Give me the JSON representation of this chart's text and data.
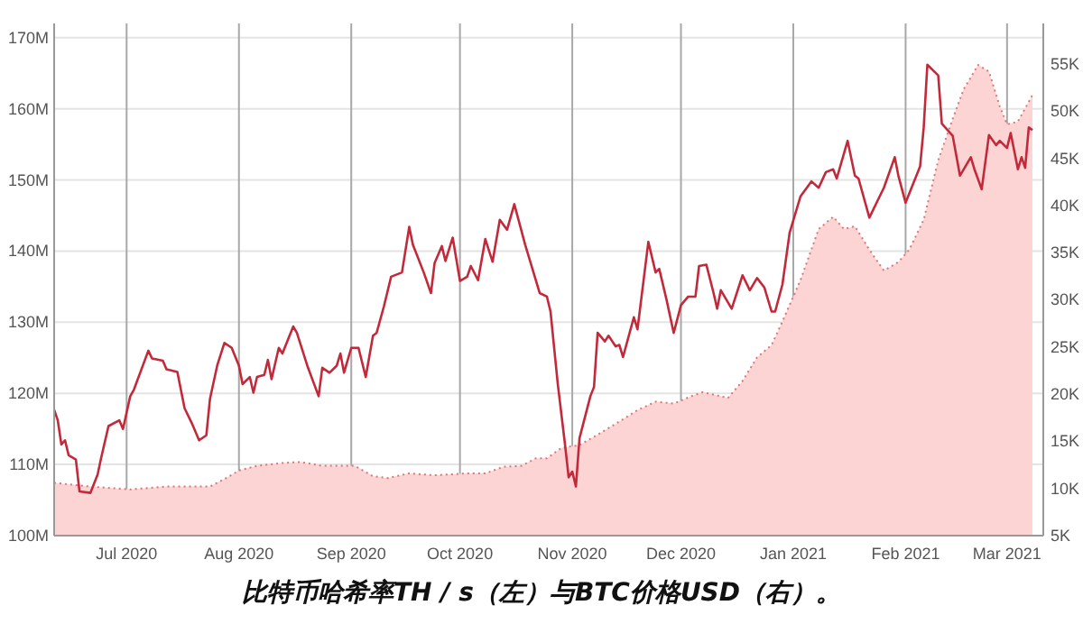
{
  "chart_data": {
    "type": "line",
    "annotations": [
      "比特币哈希率TH / s（左）与BTC价格USD（右）。"
    ],
    "xlim": [
      "2020-06-11",
      "2021-03-11"
    ],
    "xticks": [
      {
        "value": "2020-07-01",
        "label": "Jul 2020"
      },
      {
        "value": "2020-08-01",
        "label": "Aug 2020"
      },
      {
        "value": "2020-09-01",
        "label": "Sep 2020"
      },
      {
        "value": "2020-10-01",
        "label": "Oct 2020"
      },
      {
        "value": "2020-11-01",
        "label": "Nov 2020"
      },
      {
        "value": "2020-12-01",
        "label": "Dec 2020"
      },
      {
        "value": "2021-01-01",
        "label": "Jan 2021"
      },
      {
        "value": "2021-02-01",
        "label": "Feb 2021"
      },
      {
        "value": "2021-03-01",
        "label": "Mar 2021"
      }
    ],
    "ylim": [
      100000000,
      172000000
    ],
    "yticks": [
      {
        "value": 100000000,
        "label": "100M"
      },
      {
        "value": 110000000,
        "label": "110M"
      },
      {
        "value": 120000000,
        "label": "120M"
      },
      {
        "value": 130000000,
        "label": "130M"
      },
      {
        "value": 140000000,
        "label": "140M"
      },
      {
        "value": 150000000,
        "label": "150M"
      },
      {
        "value": 160000000,
        "label": "160M"
      },
      {
        "value": 170000000,
        "label": "170M"
      }
    ],
    "y2lim": [
      5000,
      59300
    ],
    "y2ticks": [
      {
        "value": 5000,
        "label": "5K"
      },
      {
        "value": 10000,
        "label": "10K"
      },
      {
        "value": 15000,
        "label": "15K"
      },
      {
        "value": 20000,
        "label": "20K"
      },
      {
        "value": 25000,
        "label": "25K"
      },
      {
        "value": 30000,
        "label": "30K"
      },
      {
        "value": 35000,
        "label": "35K"
      },
      {
        "value": 40000,
        "label": "40K"
      },
      {
        "value": 45000,
        "label": "45K"
      },
      {
        "value": 50000,
        "label": "50K"
      },
      {
        "value": 55000,
        "label": "55K"
      }
    ],
    "grid": true,
    "series": [
      {
        "type": "area",
        "axis": "y2",
        "color": "#fcd4d4",
        "line_style": "dotted",
        "x": [
          "2020-06-11",
          "2020-06-21",
          "2020-07-02",
          "2020-07-12",
          "2020-07-24",
          "2020-07-28",
          "2020-08-01",
          "2020-08-06",
          "2020-08-13",
          "2020-08-18",
          "2020-08-24",
          "2020-09-02",
          "2020-09-07",
          "2020-09-11",
          "2020-09-17",
          "2020-09-24",
          "2020-10-03",
          "2020-10-08",
          "2020-10-13",
          "2020-10-18",
          "2020-10-22",
          "2020-10-25",
          "2020-10-29",
          "2020-11-03",
          "2020-11-08",
          "2020-11-14",
          "2020-11-19",
          "2020-11-24",
          "2020-11-29",
          "2020-12-04",
          "2020-12-07",
          "2020-12-14",
          "2020-12-18",
          "2020-12-22",
          "2020-12-26",
          "2020-12-29",
          "2021-01-03",
          "2021-01-08",
          "2021-01-12",
          "2021-01-15",
          "2021-01-18",
          "2021-01-22",
          "2021-01-26",
          "2021-01-30",
          "2021-02-02",
          "2021-02-06",
          "2021-02-10",
          "2021-02-14",
          "2021-02-17",
          "2021-02-21",
          "2021-02-24",
          "2021-02-27",
          "2021-03-01",
          "2021-03-04",
          "2021-03-08"
        ],
        "values": [
          10600,
          10200,
          9900,
          10200,
          10200,
          11000,
          11900,
          12400,
          12700,
          12800,
          12400,
          12400,
          11300,
          11100,
          11600,
          11400,
          11600,
          11600,
          12300,
          12400,
          13200,
          13200,
          14300,
          14600,
          15700,
          17100,
          18300,
          19200,
          19000,
          19800,
          20200,
          19600,
          21400,
          23900,
          25200,
          27700,
          32100,
          37500,
          38800,
          37500,
          37800,
          35300,
          33100,
          34000,
          35300,
          38500,
          44800,
          49200,
          52300,
          54900,
          54200,
          50500,
          48600,
          48900,
          51700
        ]
      },
      {
        "axis": "y",
        "color": "#c22a3c",
        "line_style": "solid",
        "x": [
          "2020-06-11",
          "2020-06-12",
          "2020-06-13",
          "2020-06-14",
          "2020-06-15",
          "2020-06-17",
          "2020-06-18",
          "2020-06-21",
          "2020-06-23",
          "2020-06-24",
          "2020-06-26",
          "2020-06-29",
          "2020-06-30",
          "2020-07-02",
          "2020-07-03",
          "2020-07-07",
          "2020-07-08",
          "2020-07-11",
          "2020-07-12",
          "2020-07-15",
          "2020-07-17",
          "2020-07-19",
          "2020-07-21",
          "2020-07-23",
          "2020-07-24",
          "2020-07-26",
          "2020-07-28",
          "2020-07-30",
          "2020-08-01",
          "2020-08-02",
          "2020-08-04",
          "2020-08-05",
          "2020-08-06",
          "2020-08-08",
          "2020-08-09",
          "2020-08-10",
          "2020-08-12",
          "2020-08-13",
          "2020-08-16",
          "2020-08-17",
          "2020-08-20",
          "2020-08-23",
          "2020-08-24",
          "2020-08-26",
          "2020-08-28",
          "2020-08-29",
          "2020-08-30",
          "2020-09-01",
          "2020-09-03",
          "2020-09-05",
          "2020-09-07",
          "2020-09-08",
          "2020-09-10",
          "2020-09-12",
          "2020-09-15",
          "2020-09-17",
          "2020-09-18",
          "2020-09-21",
          "2020-09-23",
          "2020-09-24",
          "2020-09-26",
          "2020-09-27",
          "2020-09-29",
          "2020-10-01",
          "2020-10-03",
          "2020-10-04",
          "2020-10-06",
          "2020-10-08",
          "2020-10-10",
          "2020-10-12",
          "2020-10-14",
          "2020-10-16",
          "2020-10-19",
          "2020-10-21",
          "2020-10-23",
          "2020-10-25",
          "2020-10-26",
          "2020-10-28",
          "2020-10-30",
          "2020-10-31",
          "2020-11-01",
          "2020-11-02",
          "2020-11-03",
          "2020-11-06",
          "2020-11-07",
          "2020-11-08",
          "2020-11-10",
          "2020-11-11",
          "2020-11-13",
          "2020-11-14",
          "2020-11-15",
          "2020-11-18",
          "2020-11-19",
          "2020-11-22",
          "2020-11-24",
          "2020-11-25",
          "2020-11-27",
          "2020-11-29",
          "2020-12-01",
          "2020-12-03",
          "2020-12-05",
          "2020-12-06",
          "2020-12-08",
          "2020-12-10",
          "2020-12-11",
          "2020-12-12",
          "2020-12-15",
          "2020-12-18",
          "2020-12-20",
          "2020-12-22",
          "2020-12-24",
          "2020-12-26",
          "2020-12-27",
          "2020-12-29",
          "2020-12-31",
          "2021-01-03",
          "2021-01-06",
          "2021-01-08",
          "2021-01-10",
          "2021-01-12",
          "2021-01-13",
          "2021-01-16",
          "2021-01-18",
          "2021-01-19",
          "2021-01-22",
          "2021-01-24",
          "2021-01-26",
          "2021-01-29",
          "2021-01-30",
          "2021-02-01",
          "2021-02-05",
          "2021-02-06",
          "2021-02-07",
          "2021-02-10",
          "2021-02-11",
          "2021-02-14",
          "2021-02-16",
          "2021-02-19",
          "2021-02-20",
          "2021-02-22",
          "2021-02-24",
          "2021-02-26",
          "2021-02-27",
          "2021-03-01",
          "2021-03-02",
          "2021-03-04",
          "2021-03-05",
          "2021-03-06",
          "2021-03-07",
          "2021-03-08"
        ],
        "values": [
          117700000,
          116200000,
          112800000,
          113400000,
          111300000,
          110700000,
          106200000,
          106000000,
          108600000,
          111000000,
          115400000,
          116200000,
          115000000,
          119600000,
          120500000,
          126000000,
          124900000,
          124600000,
          123400000,
          123000000,
          117900000,
          115800000,
          113400000,
          114100000,
          119200000,
          123900000,
          127100000,
          126400000,
          123900000,
          121300000,
          122300000,
          120100000,
          122300000,
          122600000,
          124700000,
          122000000,
          126400000,
          125600000,
          129400000,
          128500000,
          123700000,
          119600000,
          123600000,
          122900000,
          123900000,
          125600000,
          122900000,
          126400000,
          126400000,
          122300000,
          128100000,
          128500000,
          132200000,
          136400000,
          137000000,
          143400000,
          140900000,
          137000000,
          134100000,
          138300000,
          140700000,
          138600000,
          141900000,
          135800000,
          136400000,
          137900000,
          135900000,
          141700000,
          138500000,
          144400000,
          143000000,
          146600000,
          140900000,
          137500000,
          134100000,
          133600000,
          131500000,
          121300000,
          112800000,
          108200000,
          109000000,
          106900000,
          113700000,
          119600000,
          120900000,
          128500000,
          127300000,
          128100000,
          126600000,
          126800000,
          125100000,
          130700000,
          129000000,
          141300000,
          137000000,
          137500000,
          133200000,
          128500000,
          132400000,
          133600000,
          133600000,
          137900000,
          138100000,
          134100000,
          131900000,
          134500000,
          131900000,
          136600000,
          134500000,
          136200000,
          134900000,
          131500000,
          131500000,
          135300000,
          142600000,
          147700000,
          149800000,
          148900000,
          151100000,
          151500000,
          150200000,
          155500000,
          150600000,
          150200000,
          144700000,
          146800000,
          148900000,
          153200000,
          150600000,
          146800000,
          151900000,
          157400000,
          166200000,
          164700000,
          157900000,
          156200000,
          150600000,
          153200000,
          151500000,
          148700000,
          156300000,
          154900000,
          155500000,
          154500000,
          156600000,
          151500000,
          153200000,
          151700000,
          157400000,
          157000000
        ]
      }
    ]
  }
}
